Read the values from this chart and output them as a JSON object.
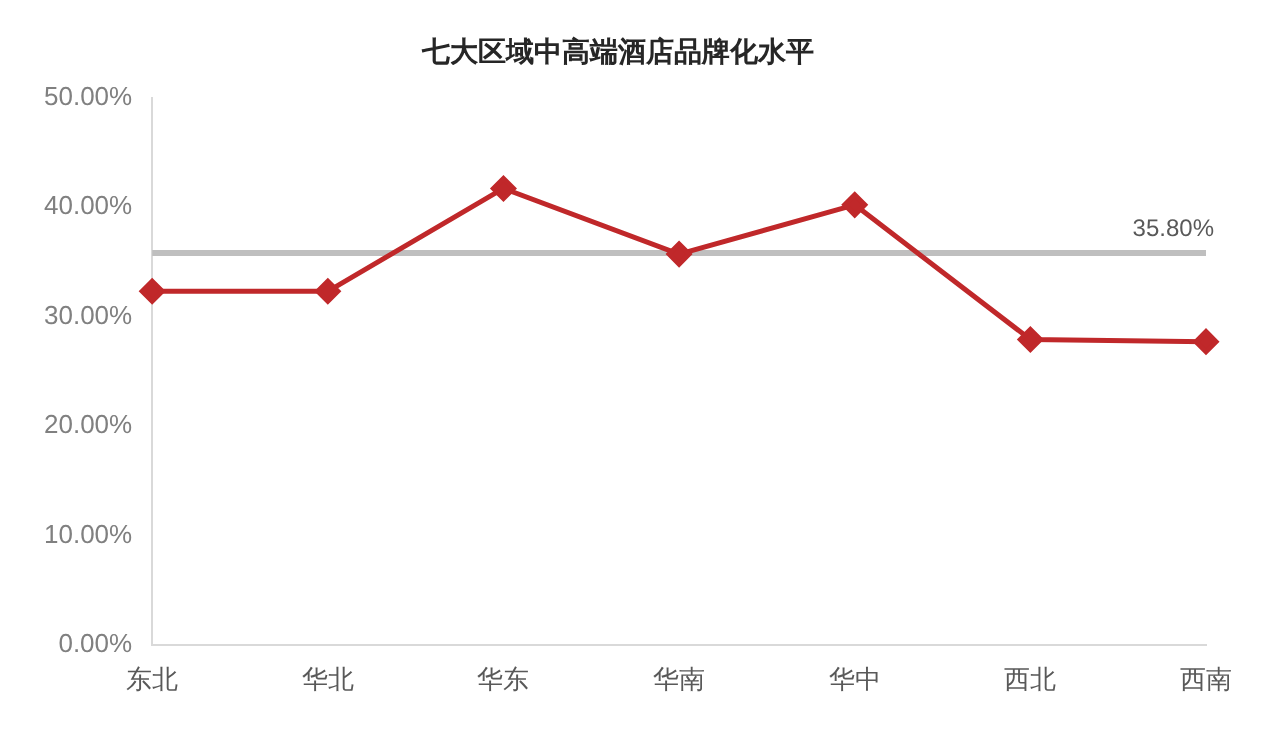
{
  "chart_data": {
    "type": "line",
    "title": "七大区域中高端酒店品牌化水平",
    "categories": [
      "东北",
      "华北",
      "华东",
      "华南",
      "华中",
      "西北",
      "西南"
    ],
    "series": [
      {
        "color": "#c0282a",
        "values": [
          32.3,
          32.3,
          41.7,
          35.7,
          40.2,
          27.9,
          27.7
        ]
      }
    ],
    "ylim": [
      0,
      50
    ],
    "yticks": [
      {
        "value": 0,
        "label": "0.00%"
      },
      {
        "value": 10,
        "label": "10.00%"
      },
      {
        "value": 20,
        "label": "20.00%"
      },
      {
        "value": 30,
        "label": "30.00%"
      },
      {
        "value": 40,
        "label": "40.00%"
      },
      {
        "value": 50,
        "label": "50.00%"
      }
    ],
    "ref_lines": [
      {
        "axis": "y",
        "value": 35.8,
        "label": "35.80%",
        "color": "#bfbfbf"
      }
    ],
    "grid": false,
    "legend": false,
    "marker": "diamond",
    "line_style": "solid"
  }
}
